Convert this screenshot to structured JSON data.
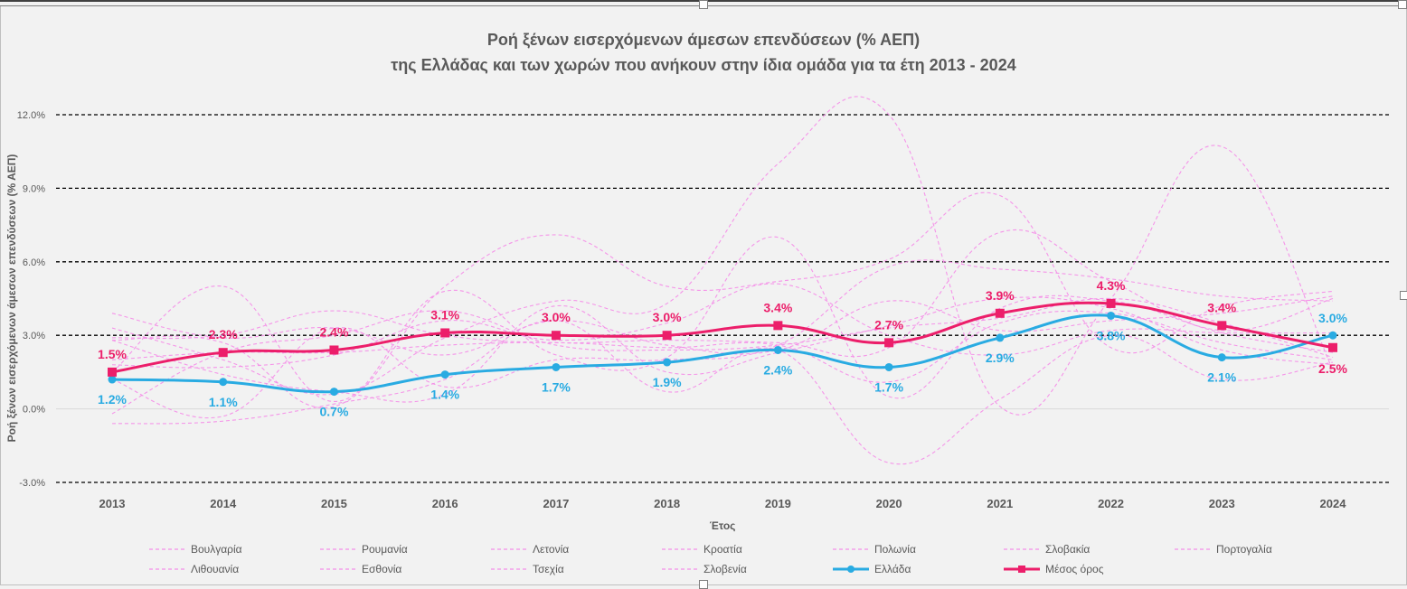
{
  "title_line1": "Ροή ξένων εισερχόμενων άμεσων επενδύσεων (% ΑΕΠ)",
  "title_line2": "της Ελλάδας και των χωρών που ανήκουν στην ίδια ομάδα για τα έτη 2013 - 2024",
  "colors": {
    "greece": "#29abe2",
    "average": "#ec1e6a",
    "peers": "#f48fe8",
    "grid": "#000000",
    "axis_text": "#595959"
  },
  "chart_data": {
    "type": "line",
    "title": "Ροή ξένων εισερχόμενων άμεσων επενδύσεων (% ΑΕΠ) της Ελλάδας και των χωρών που ανήκουν στην ίδια ομάδα για τα έτη 2013 - 2024",
    "xlabel": "Έτος",
    "ylabel": "Ροή ξένων εισερχόμενων άμεσων επενδύσεων (% ΑΕΠ)",
    "categories": [
      "2013",
      "2014",
      "2015",
      "2016",
      "2017",
      "2018",
      "2019",
      "2020",
      "2021",
      "2022",
      "2023",
      "2024"
    ],
    "ylim": [
      -3.0,
      12.0
    ],
    "yticks": [
      -3.0,
      0.0,
      3.0,
      6.0,
      9.0,
      12.0
    ],
    "ytick_labels": [
      "-3.0%",
      "0.0%",
      "3.0%",
      "6.0%",
      "9.0%",
      "12.0%"
    ],
    "gridlines": "dashed",
    "legend_position": "bottom",
    "series": [
      {
        "name": "Βουλγαρία",
        "style": "peer",
        "values": [
          3.9,
          2.9,
          3.3,
          2.2,
          3.6,
          2.6,
          2.4,
          4.4,
          3.2,
          3.6,
          3.9,
          4.6
        ]
      },
      {
        "name": "Ρουμανία",
        "style": "peer",
        "values": [
          2.0,
          2.3,
          2.3,
          2.6,
          2.7,
          2.5,
          2.6,
          1.1,
          3.5,
          3.9,
          2.7,
          2.0
        ]
      },
      {
        "name": "Λετονία",
        "style": "peer",
        "values": [
          2.8,
          1.4,
          0.7,
          0.6,
          4.2,
          1.5,
          2.3,
          3.4,
          4.5,
          4.1,
          2.4,
          1.8
        ]
      },
      {
        "name": "Κροατία",
        "style": "peer",
        "values": [
          1.5,
          5.0,
          0.3,
          4.8,
          2.2,
          2.1,
          7.0,
          0.5,
          4.1,
          4.4,
          3.1,
          2.3
        ]
      },
      {
        "name": "Πολωνία",
        "style": "peer",
        "values": [
          -0.2,
          2.3,
          3.0,
          4.0,
          2.6,
          2.4,
          2.6,
          3.3,
          3.7,
          4.5,
          3.5,
          2.1
        ]
      },
      {
        "name": "Σλοβακία",
        "style": "peer",
        "values": [
          -0.6,
          -0.5,
          0.2,
          1.2,
          3.6,
          0.7,
          2.4,
          -2.2,
          0.4,
          3.0,
          1.2,
          1.9
        ]
      },
      {
        "name": "Πορτογαλία",
        "style": "peer",
        "values": [
          1.8,
          1.7,
          2.2,
          3.6,
          2.8,
          3.5,
          5.1,
          3.0,
          2.2,
          3.2,
          3.1,
          3.1
        ]
      },
      {
        "name": "Λιθουανία",
        "style": "peer",
        "values": [
          1.2,
          -0.3,
          3.3,
          0.9,
          2.0,
          2.0,
          2.6,
          5.8,
          5.7,
          5.3,
          4.6,
          4.4
        ]
      },
      {
        "name": "Εσθονία",
        "style": "peer",
        "values": [
          3.3,
          2.0,
          0.6,
          2.9,
          4.4,
          4.3,
          10.0,
          12.0,
          0.1,
          4.5,
          10.7,
          1.6
        ]
      },
      {
        "name": "Τσεχία",
        "style": "peer",
        "values": [
          2.8,
          2.7,
          0.1,
          5.0,
          7.1,
          5.0,
          5.2,
          6.1,
          8.7,
          2.5,
          4.2,
          4.8
        ]
      },
      {
        "name": "Σλοβενία",
        "style": "peer",
        "values": [
          2.9,
          3.0,
          4.0,
          3.0,
          2.7,
          2.8,
          2.7,
          2.5,
          7.2,
          5.2,
          3.2,
          4.5
        ]
      },
      {
        "name": "Ελλάδα",
        "style": "greece",
        "values": [
          1.2,
          1.1,
          0.7,
          1.4,
          1.7,
          1.9,
          2.4,
          1.7,
          2.9,
          3.8,
          2.1,
          3.0
        ]
      },
      {
        "name": "Μέσος όρος",
        "style": "average",
        "values": [
          1.5,
          2.3,
          2.4,
          3.1,
          3.0,
          3.0,
          3.4,
          2.7,
          3.9,
          4.3,
          3.4,
          2.5
        ]
      }
    ],
    "labels_greece": [
      "1.2%",
      "1.1%",
      "0.7%",
      "1.4%",
      "1.7%",
      "1.9%",
      "2.4%",
      "1.7%",
      "2.9%",
      "3.8%",
      "2.1%",
      "3.0%"
    ],
    "labels_average": [
      "1.5%",
      "2.3%",
      "2.4%",
      "3.1%",
      "3.0%",
      "3.0%",
      "3.4%",
      "2.7%",
      "3.9%",
      "4.3%",
      "3.4%",
      "2.5%"
    ]
  }
}
